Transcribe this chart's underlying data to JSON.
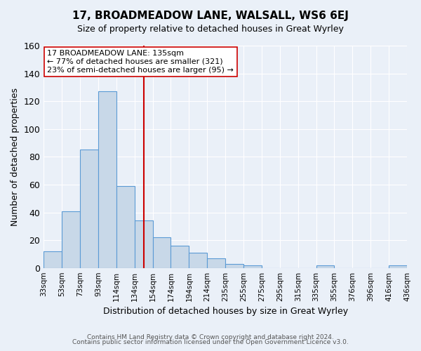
{
  "title": "17, BROADMEADOW LANE, WALSALL, WS6 6EJ",
  "subtitle": "Size of property relative to detached houses in Great Wyrley",
  "xlabel": "Distribution of detached houses by size in Great Wyrley",
  "ylabel": "Number of detached properties",
  "footnote1": "Contains HM Land Registry data © Crown copyright and database right 2024.",
  "footnote2": "Contains public sector information licensed under the Open Government Licence v3.0.",
  "annotation_line1": "17 BROADMEADOW LANE: 135sqm",
  "annotation_line2": "← 77% of detached houses are smaller (321)",
  "annotation_line3": "23% of semi-detached houses are larger (95) →",
  "bin_labels": [
    "33sqm",
    "53sqm",
    "73sqm",
    "93sqm",
    "114sqm",
    "134sqm",
    "154sqm",
    "174sqm",
    "194sqm",
    "214sqm",
    "235sqm",
    "255sqm",
    "275sqm",
    "295sqm",
    "315sqm",
    "335sqm",
    "355sqm",
    "376sqm",
    "396sqm",
    "416sqm",
    "436sqm"
  ],
  "bar_values": [
    12,
    41,
    85,
    127,
    59,
    34,
    22,
    16,
    11,
    7,
    3,
    2,
    0,
    0,
    0,
    2,
    0,
    0,
    0,
    2
  ],
  "bar_color": "#c8d8e8",
  "bar_edge_color": "#5b9bd5",
  "vline_color": "#cc0000",
  "vline_position": 5.0,
  "ylim": [
    0,
    160
  ],
  "yticks": [
    0,
    20,
    40,
    60,
    80,
    100,
    120,
    140,
    160
  ],
  "bg_color": "#eaf0f8",
  "plot_bg_color": "#eaf0f8",
  "grid_color": "#ffffff",
  "annotation_box_color": "#ffffff",
  "annotation_box_edge": "#cc0000"
}
